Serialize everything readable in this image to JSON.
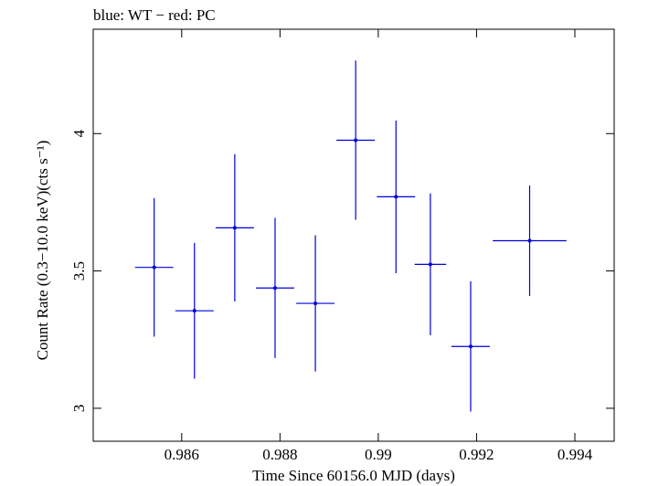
{
  "chart_data": {
    "type": "scatter",
    "title": "blue: WT − red: PC",
    "xlabel": "Time Since 60156.0 MJD (days)",
    "ylabel": "Count Rate (0.3−10.0 keV)(cts s⁻¹)",
    "xlim": [
      0.9842,
      0.9948
    ],
    "ylim": [
      2.88,
      4.38
    ],
    "x_ticks": [
      0.986,
      0.988,
      0.99,
      0.992,
      0.994
    ],
    "x_tick_labels": [
      "0.986",
      "0.988",
      "0.99",
      "0.992",
      "0.994"
    ],
    "y_ticks": [
      3,
      3.5,
      4
    ],
    "y_tick_labels": [
      "3",
      "3.5",
      "4"
    ],
    "grid": false,
    "series": [
      {
        "color": "#0000dd",
        "points": [
          {
            "x": 0.98544,
            "y": 3.513,
            "xerr": 0.00039,
            "yerr": 0.252
          },
          {
            "x": 0.98626,
            "y": 3.355,
            "xerr": 0.00039,
            "yerr": 0.247
          },
          {
            "x": 0.98708,
            "y": 3.657,
            "xerr": 0.00039,
            "yerr": 0.268
          },
          {
            "x": 0.9879,
            "y": 3.438,
            "xerr": 0.00039,
            "yerr": 0.255
          },
          {
            "x": 0.98872,
            "y": 3.382,
            "xerr": 0.00039,
            "yerr": 0.248
          },
          {
            "x": 0.98954,
            "y": 3.976,
            "xerr": 0.00039,
            "yerr": 0.29
          },
          {
            "x": 0.99036,
            "y": 3.77,
            "xerr": 0.00039,
            "yerr": 0.278
          },
          {
            "x": 0.99106,
            "y": 3.524,
            "xerr": 0.00032,
            "yerr": 0.258
          },
          {
            "x": 0.99188,
            "y": 3.225,
            "xerr": 0.00039,
            "yerr": 0.237
          },
          {
            "x": 0.99308,
            "y": 3.61,
            "xerr": 0.00075,
            "yerr": 0.201
          }
        ]
      }
    ]
  }
}
